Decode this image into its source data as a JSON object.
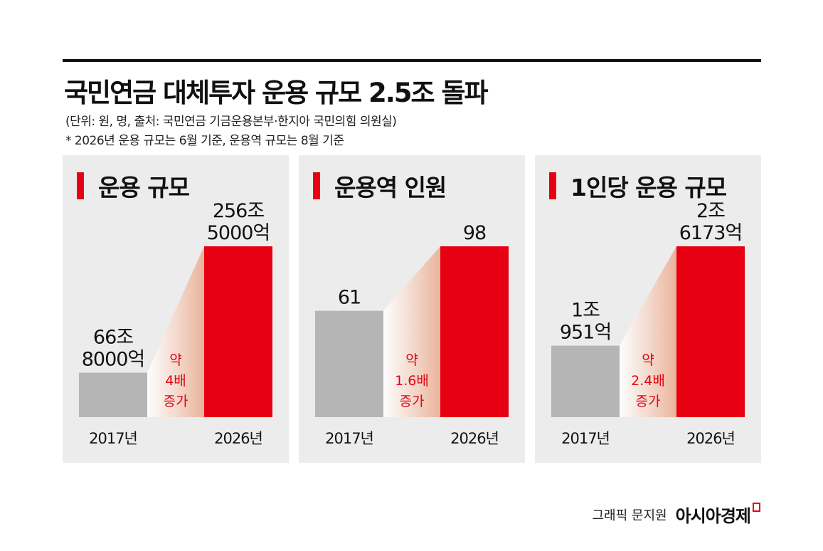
{
  "header": {
    "title": "국민연금 대체투자 운용 규모 2.5조 돌파",
    "unit_note": "(단위: 원, 명, 출처: 국민연금 기금운용본부·한지아 국민의힘 의원실)",
    "footnote": "* 2026년 운용 규모는 6월 기준, 운용역 규모는 8월 기준"
  },
  "credit": {
    "byline": "그래픽 문지원",
    "logo": "아시아경제"
  },
  "colors": {
    "accent": "#e60012",
    "bar_2017": "#b5b5b5",
    "bar_2026": "#e60012",
    "panel_bg": "#ececec"
  },
  "chart_data": [
    {
      "type": "bar",
      "title": "운용 규모",
      "categories": [
        "2017년",
        "2026년"
      ],
      "values": [
        66.8,
        256.5
      ],
      "value_labels": [
        [
          "66조",
          "8000억"
        ],
        [
          "256조",
          "5000억"
        ]
      ],
      "annotation": [
        "약",
        "4배",
        "증가"
      ]
    },
    {
      "type": "bar",
      "title": "운용역 인원",
      "categories": [
        "2017년",
        "2026년"
      ],
      "values": [
        61,
        98
      ],
      "value_labels": [
        [
          "61"
        ],
        [
          "98"
        ]
      ],
      "annotation": [
        "약",
        "1.6배",
        "증가"
      ]
    },
    {
      "type": "bar",
      "title": "1인당 운용 규모",
      "categories": [
        "2017년",
        "2026년"
      ],
      "values": [
        1.0951,
        2.6173
      ],
      "value_labels": [
        [
          "1조",
          "951억"
        ],
        [
          "2조",
          "6173억"
        ]
      ],
      "annotation": [
        "약",
        "2.4배",
        "증가"
      ]
    }
  ]
}
